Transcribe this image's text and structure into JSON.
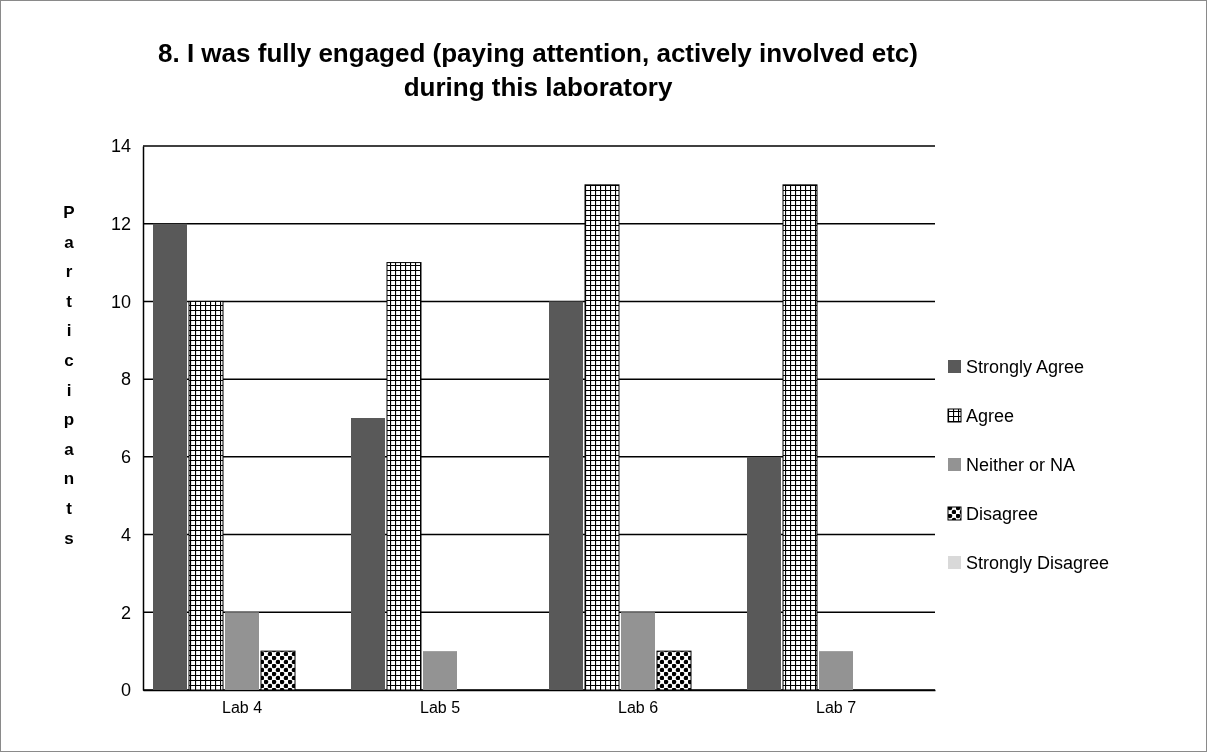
{
  "chart_data": {
    "type": "bar",
    "title": "8. I was fully engaged (paying attention, actively involved etc) during this laboratory",
    "ylabel": "Participants",
    "categories": [
      "Lab 4",
      "Lab 5",
      "Lab 6",
      "Lab 7"
    ],
    "series": [
      {
        "name": "Strongly Agree",
        "color": "#595959",
        "values": [
          12,
          7,
          10,
          6
        ]
      },
      {
        "name": "Agree",
        "color": "#000000",
        "values": [
          10,
          11,
          13,
          13
        ]
      },
      {
        "name": "Neither or NA",
        "color": "#939393",
        "values": [
          2,
          1,
          2,
          1
        ]
      },
      {
        "name": "Disagree",
        "color": "#000000",
        "values": [
          1,
          0,
          1,
          0
        ]
      },
      {
        "name": "Strongly Disagree",
        "color": "#d9d9d9",
        "values": [
          0,
          0,
          0,
          0
        ]
      }
    ],
    "ylim": [
      0,
      14
    ],
    "yticks": [
      0,
      2,
      4,
      6,
      8,
      10,
      12,
      14
    ],
    "grid": "y",
    "legend": "right"
  }
}
